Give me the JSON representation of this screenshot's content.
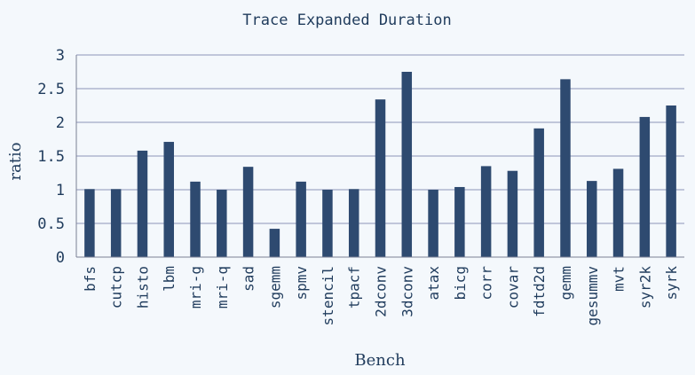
{
  "chart_data": {
    "type": "bar",
    "title": "Trace Expanded Duration",
    "xlabel": "Bench",
    "ylabel": "ratio",
    "ylim": [
      0,
      3
    ],
    "yticks": [
      0,
      0.5,
      1,
      1.5,
      2,
      2.5,
      3
    ],
    "ytick_labels": [
      "0",
      "0.5",
      "1",
      "1.5",
      "2",
      "2.5",
      "3"
    ],
    "grid": true,
    "bar_color": "#2e4a70",
    "grid_color": "#8b93b8",
    "categories": [
      "bfs",
      "cutcp",
      "histo",
      "lbm",
      "mri-g",
      "mri-q",
      "sad",
      "sgemm",
      "spmv",
      "stencil",
      "tpacf",
      "2dconv",
      "3dconv",
      "atax",
      "bicg",
      "corr",
      "covar",
      "fdtd2d",
      "gemm",
      "gesummv",
      "mvt",
      "syr2k",
      "syrk"
    ],
    "values": [
      1.01,
      1.01,
      1.58,
      1.71,
      1.12,
      1.0,
      1.34,
      0.42,
      1.12,
      1.0,
      1.01,
      2.34,
      2.75,
      1.0,
      1.04,
      1.35,
      1.28,
      1.91,
      2.64,
      1.13,
      1.31,
      2.08,
      2.25
    ]
  }
}
